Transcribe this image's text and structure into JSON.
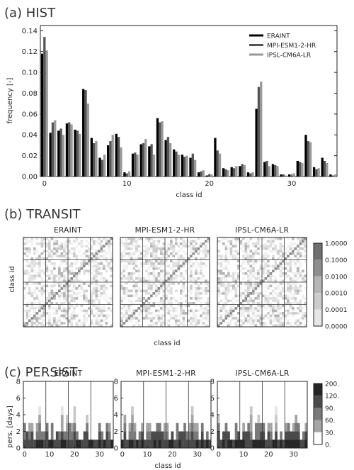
{
  "panels": {
    "hist_title": "(a)  HIST",
    "transit_title": "(b)  TRANSIT",
    "persist_title": "(c)  PERSIST"
  },
  "legend": [
    "ERAINT",
    "MPI-ESM1-2-HR",
    "IPSL-CM6A-LR"
  ],
  "colors": {
    "ERAINT": "#000000",
    "MPI-ESM1-2-HR": "#555555",
    "IPSL-CM6A-LR": "#999999"
  },
  "chart_data": [
    {
      "type": "bar",
      "title": "HIST",
      "xlabel": "class id",
      "ylabel": "frequency [-]",
      "ylim": [
        0,
        0.145
      ],
      "xlim": [
        -0.5,
        35.5
      ],
      "yticks": [
        "0.00",
        "0.02",
        "0.04",
        "0.06",
        "0.08",
        "0.10",
        "0.12",
        "0.14"
      ],
      "xticks": [
        "0",
        "10",
        "20",
        "30"
      ],
      "legend_position": "top-right",
      "categories": [
        0,
        1,
        2,
        3,
        4,
        5,
        6,
        7,
        8,
        9,
        10,
        11,
        12,
        13,
        14,
        15,
        16,
        17,
        18,
        19,
        20,
        21,
        22,
        23,
        24,
        25,
        26,
        27,
        28,
        29,
        30,
        31,
        32,
        33,
        34,
        35
      ],
      "series": [
        {
          "name": "ERAINT",
          "values": [
            0.118,
            0.042,
            0.044,
            0.051,
            0.045,
            0.084,
            0.037,
            0.018,
            0.03,
            0.041,
            0.004,
            0.022,
            0.031,
            0.029,
            0.056,
            0.035,
            0.026,
            0.021,
            0.018,
            0.004,
            0.001,
            0.037,
            0.008,
            0.009,
            0.01,
            0.004,
            0.065,
            0.014,
            0.012,
            0.002,
            0.002,
            0.015,
            0.04,
            0.009,
            0.018,
            0.002
          ]
        },
        {
          "name": "MPI-ESM1-2-HR",
          "values": [
            0.134,
            0.052,
            0.046,
            0.052,
            0.044,
            0.083,
            0.032,
            0.016,
            0.034,
            0.038,
            0.003,
            0.023,
            0.032,
            0.031,
            0.052,
            0.038,
            0.024,
            0.019,
            0.022,
            0.005,
            0.002,
            0.025,
            0.007,
            0.008,
            0.012,
            0.003,
            0.086,
            0.015,
            0.011,
            0.002,
            0.001,
            0.014,
            0.034,
            0.007,
            0.015,
            0.001
          ]
        },
        {
          "name": "IPSL-CM6A-LR",
          "values": [
            0.121,
            0.054,
            0.04,
            0.05,
            0.041,
            0.07,
            0.034,
            0.021,
            0.04,
            0.028,
            0.005,
            0.021,
            0.036,
            0.021,
            0.053,
            0.032,
            0.021,
            0.02,
            0.016,
            0.006,
            0.002,
            0.022,
            0.006,
            0.01,
            0.011,
            0.004,
            0.091,
            0.01,
            0.01,
            0.001,
            0.003,
            0.013,
            0.033,
            0.008,
            0.013,
            0.002
          ]
        }
      ]
    },
    {
      "type": "heatmap",
      "title": "TRANSIT",
      "xlabel": "class id",
      "ylabel": "class id",
      "panels": [
        "ERAINT",
        "MPI-ESM1-2-HR",
        "IPSL-CM6A-LR"
      ],
      "colorbar_ticks": [
        "1.0000",
        "0.1000",
        "0.0100",
        "0.0010",
        "0.0001",
        "0.0000"
      ],
      "size": 36
    },
    {
      "type": "heatmap",
      "title": "PERSIST",
      "xlabel": "class id",
      "ylabel": "pers. [days]",
      "panels": [
        "ERAINT",
        "MPI-ESM1-2-HR",
        "IPSL-CM6A-LR"
      ],
      "yticks": [
        "0",
        "2",
        "4",
        "6",
        "8"
      ],
      "xticks": [
        "0",
        "10",
        "20",
        "30"
      ],
      "colorbar_ticks": [
        "200.",
        "120.",
        "90.",
        "60.",
        "30.",
        "0."
      ]
    }
  ]
}
